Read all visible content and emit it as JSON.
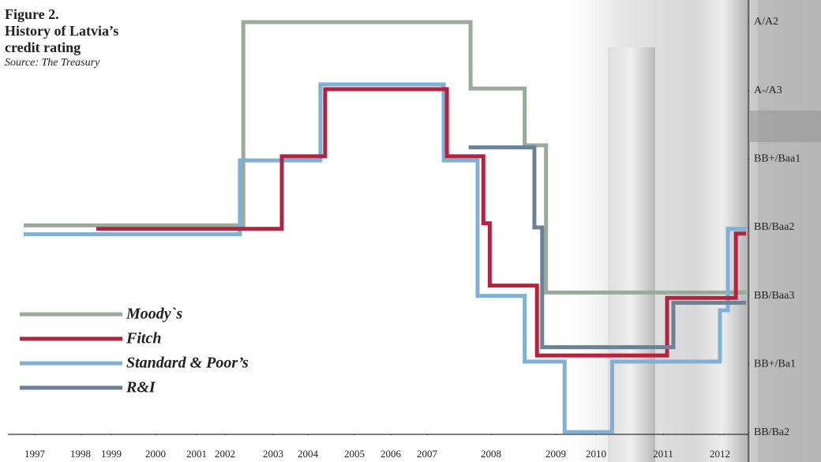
{
  "chart_data": {
    "type": "step",
    "title": "Figure 2.",
    "subtitle": "History of Latvia’s credit rating",
    "source": "Source: The Treasury",
    "xlim": [
      1996.76,
      2012.46
    ],
    "xticks": [
      1997,
      1998,
      1999,
      2000,
      2001,
      2002,
      2003,
      2004,
      2005,
      2006,
      2007,
      2008,
      2009,
      2010,
      2011,
      2012
    ],
    "ylim": [
      0,
      6
    ],
    "yticks": [
      {
        "value": 0,
        "label": "BB/Ba2"
      },
      {
        "value": 1,
        "label": "BB+/Ba1"
      },
      {
        "value": 2,
        "label": "BB/Baa3"
      },
      {
        "value": 3,
        "label": "BB/Baa2"
      },
      {
        "value": 4,
        "label": "BB+/Baa1"
      },
      {
        "value": 5,
        "label": "A-/A3"
      },
      {
        "value": 6,
        "label": "A/A2"
      }
    ],
    "legend": "left",
    "series": [
      {
        "name": "Moody`s",
        "color": "#9aab9c",
        "x": [
          1996.76,
          2002.38,
          2007.68,
          2008.52,
          2008.85,
          2012.46
        ],
        "values": [
          3.03,
          6.0,
          5.03,
          4.2,
          2.05,
          2.05
        ]
      },
      {
        "name": "Fitch",
        "color": "#b5223f",
        "x": [
          1998.51,
          2003.25,
          2004.37,
          2007.31,
          2007.88,
          2007.98,
          2008.71,
          2011.07,
          2012.28,
          2012.46
        ],
        "values": [
          2.98,
          4.04,
          5.02,
          4.04,
          3.06,
          2.15,
          1.13,
          1.97,
          2.91,
          2.91
        ]
      },
      {
        "name": "Standard & Poor’s",
        "color": "#80b0d6",
        "x": [
          1996.76,
          2002.31,
          2004.27,
          2007.26,
          2007.79,
          2008.52,
          2009.22,
          2010.24,
          2012,
          2012.14,
          2012.46
        ],
        "values": [
          2.9,
          3.98,
          5.09,
          3.98,
          2.0,
          1.04,
          0.01,
          1.04,
          1.79,
          2.98,
          2.98
        ]
      },
      {
        "name": "R&I",
        "color": "#6a8196",
        "x": [
          2007.65,
          2008.67,
          2008.79,
          2011.18,
          2012.46
        ],
        "values": [
          4.17,
          3.0,
          1.25,
          1.9,
          1.9
        ]
      }
    ]
  }
}
